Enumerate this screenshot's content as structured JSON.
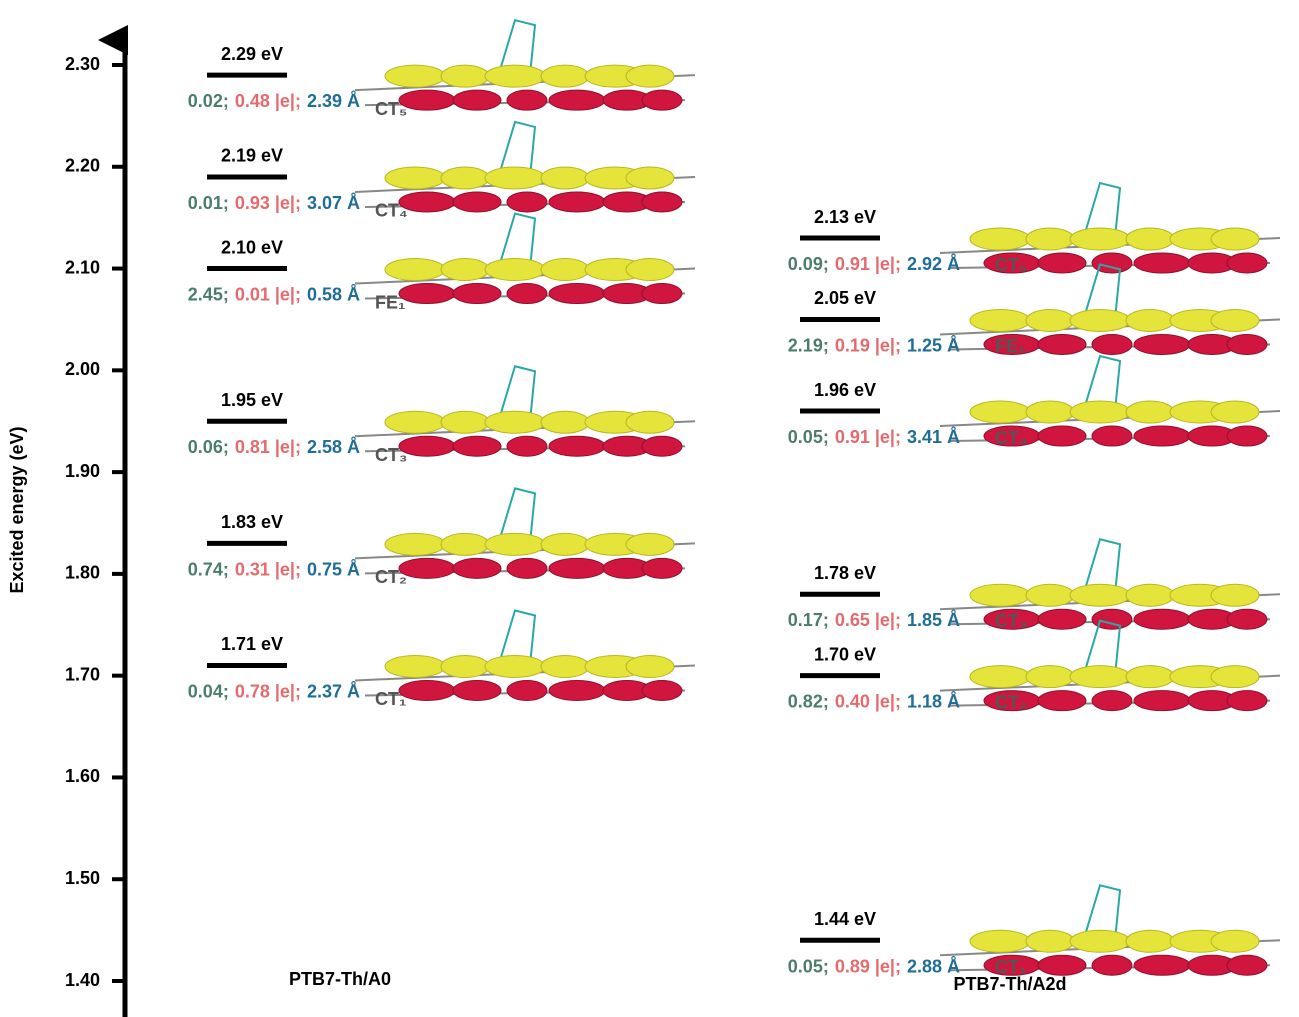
{
  "chart_data": {
    "type": "energy-level",
    "ylabel": "Excited energy (eV)",
    "ylim": [
      1.365,
      2.33
    ],
    "yticks": [
      {
        "value": 2.3,
        "label": "2.30"
      },
      {
        "value": 2.2,
        "label": "2.20"
      },
      {
        "value": 2.1,
        "label": "2.10"
      },
      {
        "value": 2.0,
        "label": "2.00"
      },
      {
        "value": 1.9,
        "label": "1.90"
      },
      {
        "value": 1.8,
        "label": "1.80"
      },
      {
        "value": 1.7,
        "label": "1.70"
      },
      {
        "value": 1.6,
        "label": "1.60"
      },
      {
        "value": 1.5,
        "label": "1.50"
      },
      {
        "value": 1.4,
        "label": "1.40"
      }
    ],
    "annotation_colors": [
      "#4b7d6e",
      "#e46a6e",
      "#1f6e97"
    ],
    "series": [
      {
        "name": "PTB7-Th/A0",
        "color": "#000000",
        "values": [
          2.29,
          2.19,
          2.1,
          1.95,
          1.83,
          1.71
        ],
        "value_labels": [
          "2.29 eV",
          "2.19 eV",
          "2.10 eV",
          "1.95 eV",
          "1.83 eV",
          "1.71 eV"
        ],
        "states": [
          "CT₅",
          "CT₄",
          "FE₁",
          "CT₃",
          "CT₂",
          "CT₁"
        ],
        "annotations": [
          [
            "0.02;",
            "0.48 |e|;",
            "2.39 Å"
          ],
          [
            "0.01;",
            "0.93 |e|;",
            "3.07 Å"
          ],
          [
            "2.45;",
            "0.01 |e|;",
            "0.58 Å"
          ],
          [
            "0.06;",
            "0.81 |e|;",
            "2.58 Å"
          ],
          [
            "0.74;",
            "0.31 |e|;",
            "0.75 Å"
          ],
          [
            "0.04;",
            "0.78 |e|;",
            "2.37 Å"
          ]
        ]
      },
      {
        "name": "PTB7-Th/A2d",
        "color": "#000000",
        "values": [
          2.13,
          2.05,
          1.96,
          1.78,
          1.7,
          1.44
        ],
        "value_labels": [
          "2.13 eV",
          "2.05 eV",
          "1.96 eV",
          "1.78 eV",
          "1.70 eV",
          "1.44 eV"
        ],
        "states": [
          "CT₅",
          "FE₁",
          "CT₄",
          "CT₃",
          "CT₂",
          "CT₁"
        ],
        "annotations": [
          [
            "0.09;",
            "0.91 |e|;",
            "2.92 Å"
          ],
          [
            "2.19;",
            "0.19 |e|;",
            "1.25 Å"
          ],
          [
            "0.05;",
            "0.91 |e|;",
            "3.41 Å"
          ],
          [
            "0.17;",
            "0.65 |e|;",
            "1.85 Å"
          ],
          [
            "0.82;",
            "0.40 |e|;",
            "1.18 Å"
          ],
          [
            "0.05;",
            "0.89 |e|;",
            "2.88 Å"
          ]
        ]
      }
    ]
  }
}
